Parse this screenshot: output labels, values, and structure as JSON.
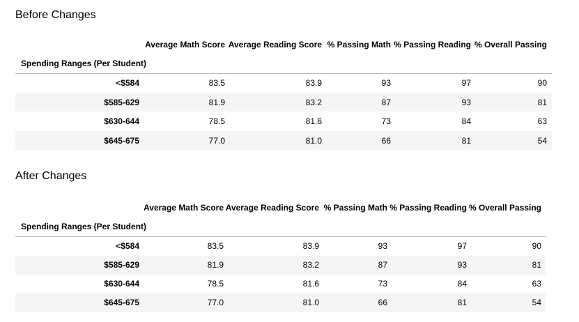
{
  "sections": [
    {
      "title": "Before Changes",
      "table": {
        "columns": [
          "Average Math Score",
          "Average Reading Score",
          "% Passing Math",
          "% Passing Reading",
          "% Overall Passing"
        ],
        "index_name": "Spending Ranges (Per Student)",
        "rows": [
          {
            "label": "<$584",
            "cells": [
              "83.5",
              "83.9",
              "93",
              "97",
              "90"
            ]
          },
          {
            "label": "$585-629",
            "cells": [
              "81.9",
              "83.2",
              "87",
              "93",
              "81"
            ]
          },
          {
            "label": "$630-644",
            "cells": [
              "78.5",
              "81.6",
              "73",
              "84",
              "63"
            ]
          },
          {
            "label": "$645-675",
            "cells": [
              "77.0",
              "81.0",
              "66",
              "81",
              "54"
            ]
          }
        ]
      }
    },
    {
      "title": "After Changes",
      "table": {
        "columns": [
          "Average Math Score",
          "Average Reading Score",
          "% Passing Math",
          "% Passing Reading",
          "% Overall Passing"
        ],
        "index_name": "Spending Ranges (Per Student)",
        "rows": [
          {
            "label": "<$584",
            "cells": [
              "83.5",
              "83.9",
              "93",
              "97",
              "90"
            ]
          },
          {
            "label": "$585-629",
            "cells": [
              "81.9",
              "83.2",
              "87",
              "93",
              "81"
            ]
          },
          {
            "label": "$630-644",
            "cells": [
              "78.5",
              "81.6",
              "73",
              "84",
              "63"
            ]
          },
          {
            "label": "$645-675",
            "cells": [
              "77.0",
              "81.0",
              "66",
              "81",
              "54"
            ]
          }
        ]
      }
    }
  ]
}
